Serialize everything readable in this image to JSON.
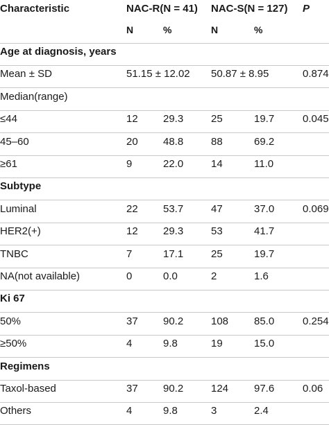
{
  "header": {
    "characteristic": "Characteristic",
    "nac_r": "NAC-R(N = 41)",
    "nac_s": "NAC-S(N = 127)",
    "p": "P",
    "n1": "N",
    "pct1": "%",
    "n2": "N",
    "pct2": "%"
  },
  "rows": [
    {
      "label": "Age at diagnosis, years",
      "section": true
    },
    {
      "label": "Mean ± SD",
      "v1": "51.15 ± 12.02",
      "v2": "",
      "v3": "50.87 ± 8.95",
      "v4": "",
      "p": "0.874"
    },
    {
      "label": "Median(range)"
    },
    {
      "label": "≤44",
      "v1": "12",
      "v2": "29.3",
      "v3": "25",
      "v4": "19.7",
      "p": "0.045"
    },
    {
      "label": "45–60",
      "v1": "20",
      "v2": "48.8",
      "v3": "88",
      "v4": "69.2",
      "p": ""
    },
    {
      "label": "≥61",
      "v1": "9",
      "v2": "22.0",
      "v3": "14",
      "v4": "11.0",
      "p": ""
    },
    {
      "label": "Subtype",
      "section": true
    },
    {
      "label": "Luminal",
      "v1": "22",
      "v2": "53.7",
      "v3": "47",
      "v4": "37.0",
      "p": "0.069"
    },
    {
      "label": "HER2(+)",
      "v1": "12",
      "v2": "29.3",
      "v3": "53",
      "v4": "41.7",
      "p": ""
    },
    {
      "label": "TNBC",
      "v1": "7",
      "v2": "17.1",
      "v3": "25",
      "v4": "19.7",
      "p": ""
    },
    {
      "label": "NA(not available)",
      "v1": "0",
      "v2": "0.0",
      "v3": "2",
      "v4": "1.6",
      "p": ""
    },
    {
      "label": "Ki 67",
      "section": true
    },
    {
      "label": "50%",
      "v1": "37",
      "v2": "90.2",
      "v3": "108",
      "v4": "85.0",
      "p": "0.254"
    },
    {
      "label": "≥50%",
      "v1": "4",
      "v2": "9.8",
      "v3": "19",
      "v4": "15.0",
      "p": ""
    },
    {
      "label": "Regimens",
      "section": true
    },
    {
      "label": "Taxol-based",
      "v1": "37",
      "v2": "90.2",
      "v3": "124",
      "v4": "97.6",
      "p": "0.06"
    },
    {
      "label": "Others",
      "v1": "4",
      "v2": "9.8",
      "v3": "3",
      "v4": "2.4",
      "p": ""
    }
  ]
}
